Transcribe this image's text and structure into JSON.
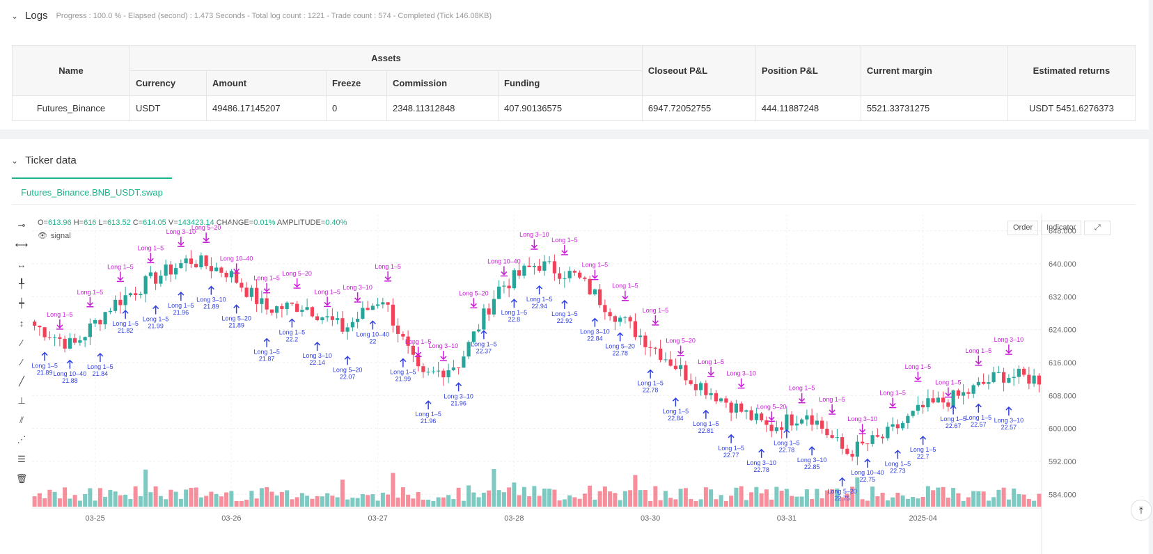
{
  "logs": {
    "title": "Logs",
    "status": "Progress : 100.0 % - Elapsed (second) : 1.473 Seconds - Total log count : 1221 - Trade count : 574 - Completed (Tick 146.08KB)"
  },
  "assets_table": {
    "group_header": "Assets",
    "headers": {
      "name": "Name",
      "currency": "Currency",
      "amount": "Amount",
      "freeze": "Freeze",
      "commission": "Commission",
      "funding": "Funding",
      "closeout": "Closeout P&L",
      "position": "Position P&L",
      "margin": "Current margin",
      "returns": "Estimated returns"
    },
    "row": {
      "name": "Futures_Binance",
      "currency": "USDT",
      "amount": "49486.17145207",
      "freeze": "0",
      "commission": "2348.11312848",
      "funding": "407.90136575",
      "closeout": "6947.72052755",
      "position": "444.11887248",
      "margin": "5521.33731275",
      "returns": "USDT 5451.6276373"
    }
  },
  "ticker": {
    "title": "Ticker data",
    "tab": "Futures_Binance.BNB_USDT.swap",
    "ohlc": {
      "o_label": "O=",
      "o": "613.96",
      "h_label": "H=",
      "h": "616",
      "l_label": "L=",
      "l": "613.52",
      "c_label": "C=",
      "c": "614.05",
      "v_label": "V=",
      "v": "143423.14",
      "change_label": "CHANGE=",
      "change": "0.01%",
      "amp_label": "AMPLITUDE=",
      "amp": "0.40%"
    },
    "signal_label": "signal",
    "buttons": {
      "order": "Order",
      "indicator": "Indicator"
    }
  },
  "chart_data": {
    "type": "candlestick",
    "y_ticks": [
      648,
      640,
      632,
      624,
      616,
      608,
      600,
      592,
      584
    ],
    "y_tick_labels": [
      "648.000",
      "640.000",
      "632.000",
      "624.000",
      "616.000",
      "608.000",
      "600.000",
      "592.000",
      "584.000"
    ],
    "ylim": [
      581,
      652
    ],
    "x_tick_labels": [
      "03-25",
      "03-26",
      "03-27",
      "03-28",
      "03-30",
      "03-31",
      "2025-04"
    ],
    "close_anchors": [
      625,
      620,
      630,
      636,
      641,
      638,
      629,
      630,
      624,
      632,
      612,
      616,
      634,
      640,
      637,
      628,
      620,
      612,
      606,
      600,
      604,
      594,
      598,
      605,
      608,
      613,
      612
    ],
    "up_color": "#26a69a",
    "down_color": "#f0435a",
    "entry_color": "#2f3fe0",
    "exit_color": "#c81ad6",
    "buy_annotations": [
      {
        "label": "Long 1–5",
        "price": "21.89"
      },
      {
        "label": "Long 10–40",
        "price": "21.88"
      },
      {
        "label": "Long 1–5",
        "price": "21.84"
      },
      {
        "label": "Long 1–5",
        "price": "21.82"
      },
      {
        "label": "Long 1–5",
        "price": "21.99"
      },
      {
        "label": "Long 1–5",
        "price": "21.96"
      },
      {
        "label": "Long 3–10",
        "price": "21.89"
      },
      {
        "label": "Long 5–20",
        "price": "21.89"
      },
      {
        "label": "Long 1–5",
        "price": "21.87"
      },
      {
        "label": "Long 1–5",
        "price": "22.2"
      },
      {
        "label": "Long 3–10",
        "price": "22.14"
      },
      {
        "label": "Long 5–20",
        "price": "22.07"
      },
      {
        "label": "Long 10–40",
        "price": "22"
      },
      {
        "label": "Long 1–5",
        "price": "21.99"
      },
      {
        "label": "Long 1–5",
        "price": "21.96"
      },
      {
        "label": "Long 3–10",
        "price": "21.96"
      },
      {
        "label": "Long 1–5",
        "price": "22.37"
      },
      {
        "label": "Long 1–5",
        "price": "22.8"
      },
      {
        "label": "Long 1–5",
        "price": "22.94"
      },
      {
        "label": "Long 1–5",
        "price": "22.92"
      },
      {
        "label": "Long 3–10",
        "price": "22.84"
      },
      {
        "label": "Long 5–20",
        "price": "22.78"
      },
      {
        "label": "Long 1–5",
        "price": "22.78"
      },
      {
        "label": "Long 1–5",
        "price": "22.84"
      },
      {
        "label": "Long 1–5",
        "price": "22.81"
      },
      {
        "label": "Long 1–5",
        "price": "22.77"
      },
      {
        "label": "Long 3–10",
        "price": "22.78"
      },
      {
        "label": "Long 1–5",
        "price": "22.78"
      },
      {
        "label": "Long 3–10",
        "price": "22.85"
      },
      {
        "label": "Long 5–20",
        "price": "22.75"
      },
      {
        "label": "Long 10–40",
        "price": "22.75"
      },
      {
        "label": "Long 1–5",
        "price": "22.73"
      },
      {
        "label": "Long 1–5",
        "price": "22.7"
      },
      {
        "label": "Long 1–5",
        "price": "22.67"
      },
      {
        "label": "Long 1–5",
        "price": "22.57"
      },
      {
        "label": "Long 3–10",
        "price": "22.57"
      }
    ],
    "sell_annotations": [
      "Long 1–5",
      "Long 1–5",
      "Long 1–5",
      "Long 1–5",
      "Long 3–10",
      "Long 5–20",
      "Long 10–40",
      "Long 1–5",
      "Long 5–20",
      "Long 1–5",
      "Long 3–10",
      "Long 1–5",
      "Long 1–5",
      "Long 3–10",
      "Long 5–20",
      "Long 10–40",
      "Long 3–10",
      "Long 1–5",
      "Long 1–5",
      "Long 1–5",
      "Long 1–5",
      "Long 5–20",
      "Long 1–5",
      "Long 3–10",
      "Long 5–20",
      "Long 1–5",
      "Long 1–5",
      "Long 3–10",
      "Long 1–5",
      "Long 1–5",
      "Long 1–5",
      "Long 1–5",
      "Long 3–10"
    ]
  }
}
